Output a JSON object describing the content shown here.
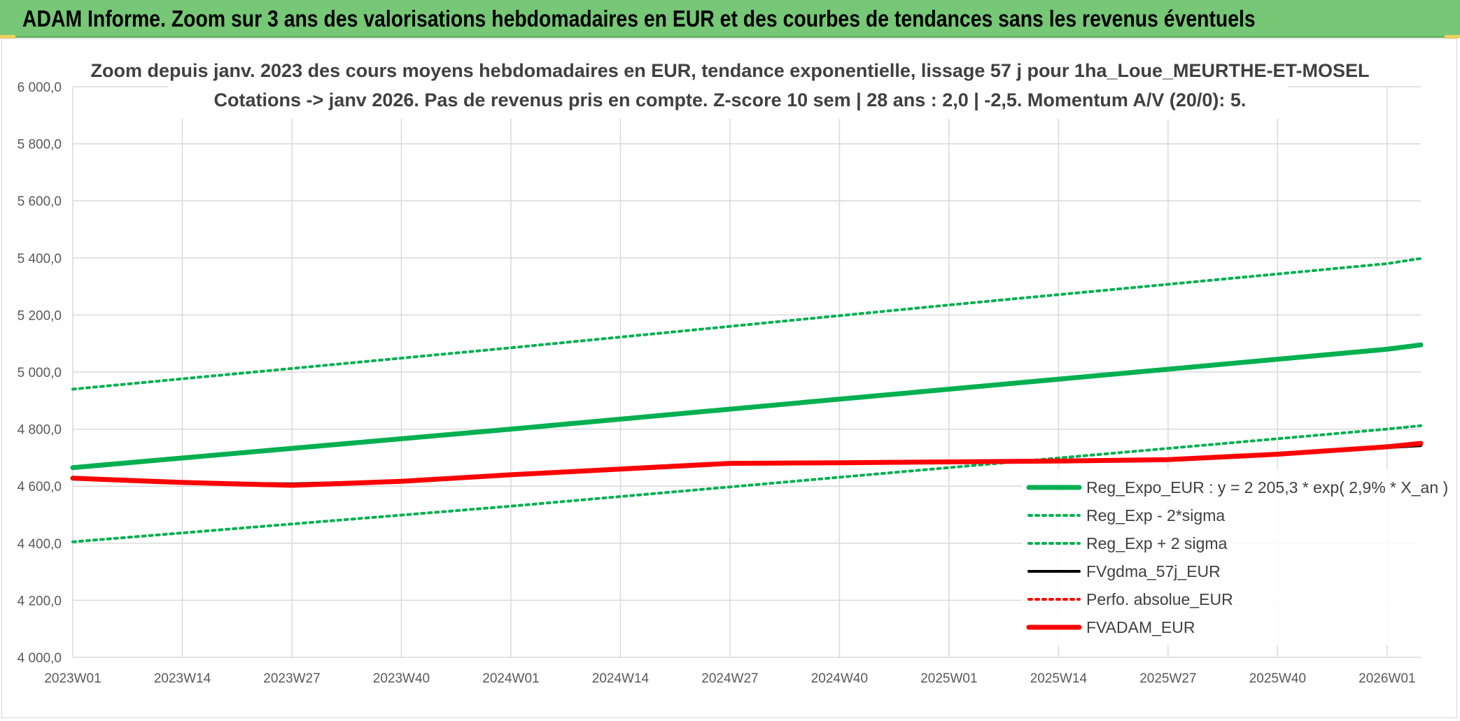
{
  "banner": {
    "title": "ADAM Informe. Zoom sur 3 ans des valorisations hebdomadaires en EUR et des courbes de tendances sans les revenus éventuels"
  },
  "colors": {
    "banner_bg": "#76c776",
    "reg_expo": "#00b050",
    "fvgdma": "#000000",
    "perfo": "#ff0000",
    "fvadam": "#ff0000",
    "grid": "#d9d9d9"
  },
  "chart_data": {
    "type": "line",
    "title_lines": [
      "Zoom depuis janv. 2023 des cours moyens hebdomadaires en EUR, tendance exponentielle, lissage 57 j pour 1ha_Loue_MEURTHE-ET-MOSEL",
      "Cotations -> janv 2026. Pas de revenus pris en compte. Z-score 10 sem | 28 ans : 2,0 | -2,5. Momentum A/V (20/0): 5."
    ],
    "xlabel": "",
    "ylabel": "",
    "ylim": [
      4000,
      6000
    ],
    "y_ticks": [
      "4 000,0",
      "4 200,0",
      "4 400,0",
      "4 600,0",
      "4 800,0",
      "5 000,0",
      "5 200,0",
      "5 400,0",
      "5 600,0",
      "5 800,0",
      "6 000,0"
    ],
    "x_ticks": [
      "2023W01",
      "2023W14",
      "2023W27",
      "2023W40",
      "2024W01",
      "2024W14",
      "2024W27",
      "2024W40",
      "2025W01",
      "2025W14",
      "2025W27",
      "2025W40",
      "2026W01"
    ],
    "x_end_week": 160,
    "grid": true,
    "legend_position": "right",
    "series": [
      {
        "name": "Reg_Expo_EUR : y = 2 205,3 * exp( 2,9% *  X_an )",
        "style": "solid-thick",
        "color": "#00b050",
        "points": [
          [
            0,
            4665
          ],
          [
            52,
            4800
          ],
          [
            104,
            4940
          ],
          [
            156,
            5080
          ],
          [
            160,
            5095
          ]
        ]
      },
      {
        "name": "Reg_Exp - 2*sigma",
        "style": "dotted",
        "color": "#00b050",
        "points": [
          [
            0,
            4405
          ],
          [
            52,
            4530
          ],
          [
            104,
            4665
          ],
          [
            156,
            4800
          ],
          [
            160,
            4812
          ]
        ]
      },
      {
        "name": "Reg_Exp + 2 sigma",
        "style": "dotted",
        "color": "#00b050",
        "points": [
          [
            0,
            4940
          ],
          [
            52,
            5085
          ],
          [
            104,
            5235
          ],
          [
            156,
            5380
          ],
          [
            160,
            5398
          ]
        ]
      },
      {
        "name": "FVgdma_57j_EUR",
        "style": "solid",
        "color": "#000000",
        "points": [
          [
            0,
            4625
          ],
          [
            13,
            4612
          ],
          [
            26,
            4608
          ],
          [
            39,
            4618
          ],
          [
            52,
            4640
          ],
          [
            65,
            4660
          ],
          [
            78,
            4678
          ],
          [
            91,
            4682
          ],
          [
            104,
            4685
          ],
          [
            117,
            4688
          ],
          [
            130,
            4693
          ],
          [
            143,
            4712
          ],
          [
            156,
            4735
          ],
          [
            160,
            4742
          ]
        ]
      },
      {
        "name": "Perfo. absolue_EUR",
        "style": "dotted",
        "color": "#ff0000",
        "points": []
      },
      {
        "name": "FVADAM_EUR",
        "style": "solid-thick",
        "color": "#ff0000",
        "points": [
          [
            0,
            4628
          ],
          [
            13,
            4613
          ],
          [
            26,
            4603
          ],
          [
            39,
            4617
          ],
          [
            52,
            4640
          ],
          [
            65,
            4660
          ],
          [
            78,
            4680
          ],
          [
            91,
            4682
          ],
          [
            104,
            4685
          ],
          [
            117,
            4688
          ],
          [
            130,
            4693
          ],
          [
            143,
            4712
          ],
          [
            156,
            4738
          ],
          [
            160,
            4750
          ]
        ]
      }
    ]
  }
}
